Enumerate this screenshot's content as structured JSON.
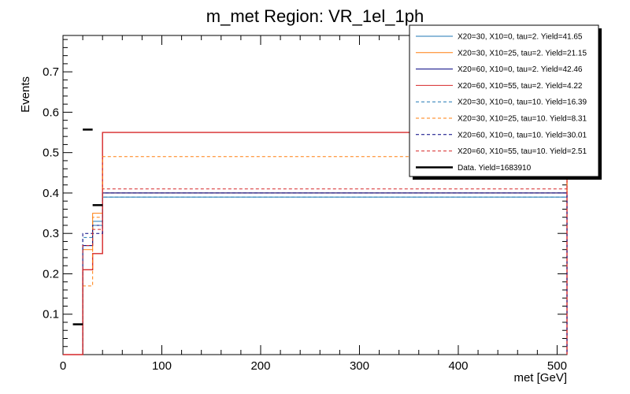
{
  "chart_data": {
    "type": "histogram",
    "title": "m_met Region: VR_1el_1ph",
    "xlabel": "met [GeV]",
    "ylabel": "Events",
    "xlim": [
      0,
      510
    ],
    "ylim": [
      0,
      0.79
    ],
    "x_ticks": [
      0,
      100,
      200,
      300,
      400,
      500
    ],
    "x_tick_labels": [
      "0",
      "100",
      "200",
      "300",
      "400",
      "500"
    ],
    "y_ticks": [
      0.1,
      0.2,
      0.3,
      0.4,
      0.5,
      0.6,
      0.7
    ],
    "y_tick_labels": [
      "0.1",
      "0.2",
      "0.3",
      "0.4",
      "0.5",
      "0.6",
      "0.7"
    ],
    "bin_edges": [
      0,
      10,
      20,
      30,
      40,
      510
    ],
    "legend_position": "top-right",
    "series": [
      {
        "name": "X20=30, X10=0, tau=2. Yield=41.65",
        "color": "#1f77b4",
        "style": "solid",
        "values": [
          0,
          0,
          0.27,
          0.33,
          0.39,
          0
        ]
      },
      {
        "name": "X20=30, X10=25, tau=2. Yield=21.15",
        "color": "#ff7f0e",
        "style": "solid",
        "values": [
          0,
          0,
          0.26,
          0.35,
          0.4,
          0
        ]
      },
      {
        "name": "X20=60, X10=0, tau=2. Yield=42.46",
        "color": "#000080",
        "style": "solid",
        "values": [
          0,
          0,
          0.27,
          0.32,
          0.4,
          0
        ]
      },
      {
        "name": "X20=60, X10=55, tau=2. Yield=4.22",
        "color": "#d62728",
        "style": "solid",
        "values": [
          0,
          0,
          0.21,
          0.25,
          0.55,
          0
        ]
      },
      {
        "name": "X20=30, X10=0, tau=10. Yield=16.39",
        "color": "#1f77b4",
        "style": "dashed",
        "values": [
          0,
          0,
          0.29,
          0.32,
          0.39,
          0
        ]
      },
      {
        "name": "X20=30, X10=25, tau=10. Yield=8.31",
        "color": "#ff7f0e",
        "style": "dashed",
        "values": [
          0,
          0,
          0.17,
          0.34,
          0.49,
          0
        ]
      },
      {
        "name": "X20=60, X10=0, tau=10. Yield=30.01",
        "color": "#000080",
        "style": "dashed",
        "values": [
          0,
          0,
          0.3,
          0.3,
          0.4,
          0
        ]
      },
      {
        "name": "X20=60, X10=55, tau=10. Yield=2.51",
        "color": "#d62728",
        "style": "dashed",
        "values": [
          0,
          0,
          0.27,
          0.31,
          0.41,
          0
        ]
      }
    ],
    "data": {
      "name": "Data. Yield=1683910",
      "color": "#000000",
      "points": [
        {
          "x": 15,
          "y": 0.075
        },
        {
          "x": 25,
          "y": 0.557
        },
        {
          "x": 35,
          "y": 0.37
        }
      ]
    }
  }
}
